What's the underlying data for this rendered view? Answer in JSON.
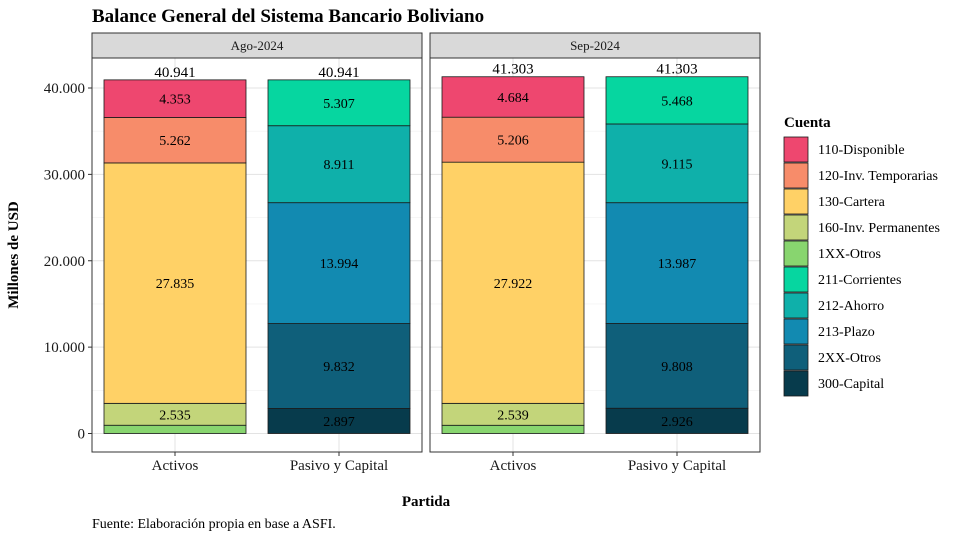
{
  "chart_data": {
    "type": "bar",
    "title": "Balance General del Sistema Bancario Boliviano",
    "xlabel": "Partida",
    "ylabel": "Millones de USD",
    "caption": "Fuente: Elaboración propia en base a ASFI.",
    "ylim": [
      0,
      43000
    ],
    "yticks": [
      0,
      10000,
      20000,
      30000,
      40000
    ],
    "ytick_labels": [
      "0",
      "10.000",
      "20.000",
      "30.000",
      "40.000"
    ],
    "grid": true,
    "legend": {
      "title": "Cuenta",
      "placement": "right",
      "items": [
        {
          "label": "110-Disponible",
          "color": "#EE476F"
        },
        {
          "label": "120-Inv. Temporarias",
          "color": "#F78C6A"
        },
        {
          "label": "130-Cartera",
          "color": "#FFD166"
        },
        {
          "label": "160-Inv. Permanentes",
          "color": "#C3D57A"
        },
        {
          "label": "1XX-Otros",
          "color": "#88D56F"
        },
        {
          "label": "211-Corrientes",
          "color": "#06D6A0"
        },
        {
          "label": "212-Ahorro",
          "color": "#0FB0AA"
        },
        {
          "label": "213-Plazo",
          "color": "#128AB1"
        },
        {
          "label": "2XX-Otros",
          "color": "#0F5F7A"
        },
        {
          "label": "300-Capital",
          "color": "#073B4C"
        }
      ]
    },
    "categories": [
      "Activos",
      "Pasivo y Capital"
    ],
    "panels": [
      {
        "label": "Ago-2024",
        "bars": [
          {
            "category": "Activos",
            "total_label": "40.941",
            "segments": [
              {
                "account": "1XX-Otros",
                "value": 956,
                "label": ""
              },
              {
                "account": "160-Inv. Permanentes",
                "value": 2535,
                "label": "2.535"
              },
              {
                "account": "130-Cartera",
                "value": 27835,
                "label": "27.835"
              },
              {
                "account": "120-Inv. Temporarias",
                "value": 5262,
                "label": "5.262"
              },
              {
                "account": "110-Disponible",
                "value": 4353,
                "label": "4.353"
              }
            ]
          },
          {
            "category": "Pasivo y Capital",
            "total_label": "40.941",
            "segments": [
              {
                "account": "300-Capital",
                "value": 2897,
                "label": "2.897"
              },
              {
                "account": "2XX-Otros",
                "value": 9832,
                "label": "9.832"
              },
              {
                "account": "213-Plazo",
                "value": 13994,
                "label": "13.994"
              },
              {
                "account": "212-Ahorro",
                "value": 8911,
                "label": "8.911"
              },
              {
                "account": "211-Corrientes",
                "value": 5307,
                "label": "5.307"
              }
            ]
          }
        ]
      },
      {
        "label": "Sep-2024",
        "bars": [
          {
            "category": "Activos",
            "total_label": "41.303",
            "segments": [
              {
                "account": "1XX-Otros",
                "value": 952,
                "label": ""
              },
              {
                "account": "160-Inv. Permanentes",
                "value": 2539,
                "label": "2.539"
              },
              {
                "account": "130-Cartera",
                "value": 27922,
                "label": "27.922"
              },
              {
                "account": "120-Inv. Temporarias",
                "value": 5206,
                "label": "5.206"
              },
              {
                "account": "110-Disponible",
                "value": 4684,
                "label": "4.684"
              }
            ]
          },
          {
            "category": "Pasivo y Capital",
            "total_label": "41.303",
            "segments": [
              {
                "account": "300-Capital",
                "value": 2926,
                "label": "2.926"
              },
              {
                "account": "2XX-Otros",
                "value": 9808,
                "label": "9.808"
              },
              {
                "account": "213-Plazo",
                "value": 13987,
                "label": "13.987"
              },
              {
                "account": "212-Ahorro",
                "value": 9115,
                "label": "9.115"
              },
              {
                "account": "211-Corrientes",
                "value": 5468,
                "label": "5.468"
              }
            ]
          }
        ]
      }
    ]
  }
}
